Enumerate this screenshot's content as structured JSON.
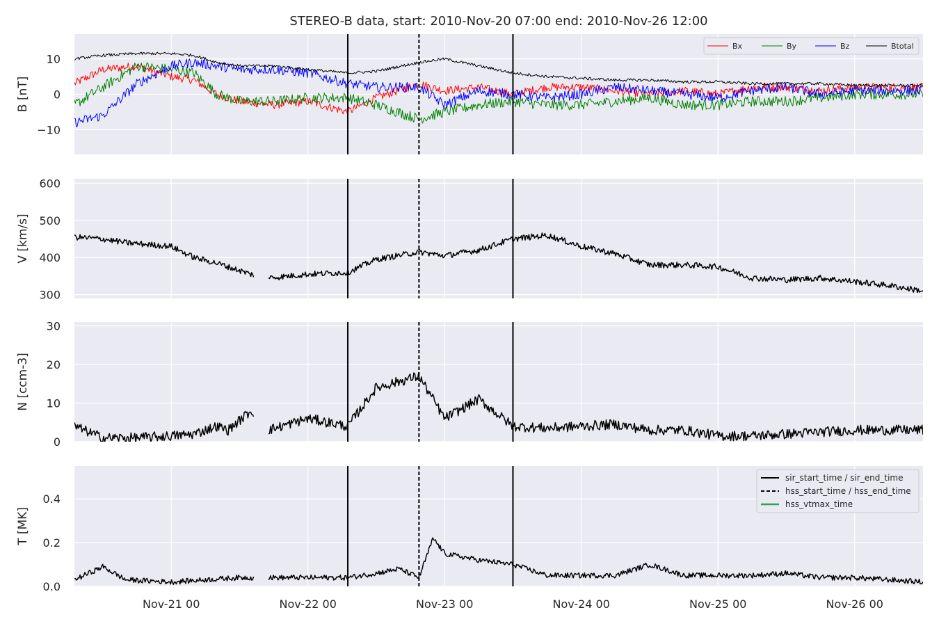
{
  "chart_data": {
    "type": "line",
    "title": "STEREO-B data, start: 2010-Nov-20 07:00  end: 2010-Nov-26 12:00",
    "x_range": [
      "2010-11-20T07:00",
      "2010-11-26T12:00"
    ],
    "x_ticks": [
      {
        "label": "Nov-21 00",
        "time": "2010-11-21T00:00"
      },
      {
        "label": "Nov-22 00",
        "time": "2010-11-22T00:00"
      },
      {
        "label": "Nov-23 00",
        "time": "2010-11-23T00:00"
      },
      {
        "label": "Nov-24 00",
        "time": "2010-11-24T00:00"
      },
      {
        "label": "Nov-25 00",
        "time": "2010-11-25T00:00"
      },
      {
        "label": "Nov-26 00",
        "time": "2010-11-26T00:00"
      }
    ],
    "event_lines": [
      {
        "time": "2010-11-22T07:00",
        "style": "solid"
      },
      {
        "time": "2010-11-22T19:30",
        "style": "dashed"
      },
      {
        "time": "2010-11-23T12:00",
        "style": "solid"
      }
    ],
    "grid": true,
    "panels": [
      {
        "ylabel": "B [nT]",
        "ylim": [
          -17,
          17
        ],
        "yticks": [
          {
            "v": 10,
            "label": "10"
          },
          {
            "v": 0,
            "label": "0"
          },
          {
            "v": -10,
            "label": "−10"
          }
        ],
        "legend_position": "top-right",
        "series": [
          {
            "name": "Bx",
            "color": "#ff0000",
            "width": 1,
            "x": [
              "2010-11-20T07:00",
              "2010-11-20T12:00",
              "2010-11-20T18:00",
              "2010-11-21T00:00",
              "2010-11-21T04:00",
              "2010-11-21T08:00",
              "2010-11-21T12:00",
              "2010-11-21T18:00",
              "2010-11-22T00:00",
              "2010-11-22T07:00",
              "2010-11-22T12:00",
              "2010-11-22T19:30",
              "2010-11-23T00:00",
              "2010-11-23T06:00",
              "2010-11-23T12:00",
              "2010-11-23T18:00",
              "2010-11-24T00:00",
              "2010-11-24T06:00",
              "2010-11-24T12:00",
              "2010-11-24T18:00",
              "2010-11-25T00:00",
              "2010-11-25T06:00",
              "2010-11-25T12:00",
              "2010-11-25T18:00",
              "2010-11-26T00:00",
              "2010-11-26T06:00",
              "2010-11-26T12:00"
            ],
            "y": [
              3,
              7,
              8,
              5,
              4,
              0,
              -2,
              -3,
              -2,
              -5,
              -1,
              3,
              1,
              2,
              0,
              2,
              2,
              1,
              0,
              1,
              0,
              2,
              2,
              1,
              2,
              2,
              2
            ],
            "noise": 1.2
          },
          {
            "name": "By",
            "color": "#008000",
            "width": 1,
            "x": [
              "2010-11-20T07:00",
              "2010-11-20T12:00",
              "2010-11-20T18:00",
              "2010-11-21T00:00",
              "2010-11-21T04:00",
              "2010-11-21T08:00",
              "2010-11-21T12:00",
              "2010-11-21T18:00",
              "2010-11-22T00:00",
              "2010-11-22T07:00",
              "2010-11-22T12:00",
              "2010-11-22T19:30",
              "2010-11-23T00:00",
              "2010-11-23T06:00",
              "2010-11-23T12:00",
              "2010-11-23T18:00",
              "2010-11-24T00:00",
              "2010-11-24T06:00",
              "2010-11-24T12:00",
              "2010-11-24T18:00",
              "2010-11-25T00:00",
              "2010-11-25T06:00",
              "2010-11-25T12:00",
              "2010-11-25T18:00",
              "2010-11-26T00:00",
              "2010-11-26T06:00",
              "2010-11-26T12:00"
            ],
            "y": [
              -3,
              2,
              8,
              7,
              6,
              0,
              -2,
              -2,
              -1,
              -1,
              -3,
              -7,
              -5,
              -3,
              -2,
              -3,
              -3,
              -2,
              -1,
              -3,
              -3,
              -2,
              -2,
              -1,
              0,
              0,
              0
            ],
            "noise": 1.5
          },
          {
            "name": "Bz",
            "color": "#0000ff",
            "width": 1,
            "x": [
              "2010-11-20T07:00",
              "2010-11-20T12:00",
              "2010-11-20T18:00",
              "2010-11-21T00:00",
              "2010-11-21T04:00",
              "2010-11-21T08:00",
              "2010-11-21T12:00",
              "2010-11-21T18:00",
              "2010-11-22T00:00",
              "2010-11-22T07:00",
              "2010-11-22T12:00",
              "2010-11-22T19:30",
              "2010-11-23T00:00",
              "2010-11-23T06:00",
              "2010-11-23T12:00",
              "2010-11-23T18:00",
              "2010-11-24T00:00",
              "2010-11-24T06:00",
              "2010-11-24T12:00",
              "2010-11-24T18:00",
              "2010-11-25T00:00",
              "2010-11-25T06:00",
              "2010-11-25T12:00",
              "2010-11-25T18:00",
              "2010-11-26T00:00",
              "2010-11-26T06:00",
              "2010-11-26T12:00"
            ],
            "y": [
              -8,
              -6,
              3,
              8,
              9,
              8,
              7,
              7,
              6,
              3,
              2,
              2,
              -3,
              1,
              0,
              -1,
              0,
              2,
              1,
              0,
              -1,
              1,
              2,
              0,
              1,
              1,
              1
            ],
            "noise": 1.4
          },
          {
            "name": "Btotal",
            "color": "#000000",
            "width": 1,
            "x": [
              "2010-11-20T07:00",
              "2010-11-20T12:00",
              "2010-11-20T18:00",
              "2010-11-21T00:00",
              "2010-11-21T04:00",
              "2010-11-21T08:00",
              "2010-11-21T12:00",
              "2010-11-21T18:00",
              "2010-11-22T00:00",
              "2010-11-22T07:00",
              "2010-11-22T12:00",
              "2010-11-22T19:30",
              "2010-11-23T00:00",
              "2010-11-23T06:00",
              "2010-11-23T12:00",
              "2010-11-23T18:00",
              "2010-11-24T00:00",
              "2010-11-24T06:00",
              "2010-11-24T12:00",
              "2010-11-24T18:00",
              "2010-11-25T00:00",
              "2010-11-25T06:00",
              "2010-11-25T12:00",
              "2010-11-25T18:00",
              "2010-11-26T00:00",
              "2010-11-26T06:00",
              "2010-11-26T12:00"
            ],
            "y": [
              10,
              11,
              11.5,
              11.5,
              11,
              9,
              8,
              8,
              7,
              6,
              6.5,
              9,
              10,
              8,
              6,
              5,
              4.5,
              4,
              4,
              3.5,
              3.5,
              3,
              3,
              3,
              2.5,
              2.5,
              2.5
            ],
            "noise": 0.4
          }
        ]
      },
      {
        "ylabel": "V [km/s]",
        "ylim": [
          290,
          612
        ],
        "yticks": [
          {
            "v": 600,
            "label": "600"
          },
          {
            "v": 500,
            "label": "500"
          },
          {
            "v": 400,
            "label": "400"
          },
          {
            "v": 300,
            "label": "300"
          }
        ],
        "series": [
          {
            "name": "",
            "color": "#000000",
            "width": 1.5,
            "gap": [
              "2010-11-21T14:30",
              "2010-11-21T17:00"
            ],
            "x": [
              "2010-11-20T07:00",
              "2010-11-20T12:00",
              "2010-11-20T16:00",
              "2010-11-21T00:00",
              "2010-11-21T04:00",
              "2010-11-21T08:00",
              "2010-11-21T14:00",
              "2010-11-21T17:00",
              "2010-11-22T00:00",
              "2010-11-22T07:00",
              "2010-11-22T12:00",
              "2010-11-22T19:30",
              "2010-11-23T00:00",
              "2010-11-23T06:00",
              "2010-11-23T12:00",
              "2010-11-23T18:00",
              "2010-11-24T00:00",
              "2010-11-24T06:00",
              "2010-11-24T12:00",
              "2010-11-24T18:00",
              "2010-11-25T00:00",
              "2010-11-25T06:00",
              "2010-11-25T12:00",
              "2010-11-25T18:00",
              "2010-11-26T00:00",
              "2010-11-26T06:00",
              "2010-11-26T12:00"
            ],
            "y": [
              455,
              450,
              440,
              430,
              400,
              385,
              355,
              345,
              355,
              360,
              395,
              415,
              405,
              420,
              450,
              460,
              430,
              410,
              380,
              380,
              375,
              345,
              340,
              345,
              335,
              325,
              310
            ],
            "noise": 8
          }
        ]
      },
      {
        "ylabel": "N [ccm-3]",
        "ylim": [
          0,
          31
        ],
        "yticks": [
          {
            "v": 30,
            "label": "30"
          },
          {
            "v": 20,
            "label": "20"
          },
          {
            "v": 10,
            "label": "10"
          },
          {
            "v": 0,
            "label": "0"
          }
        ],
        "series": [
          {
            "name": "",
            "color": "#000000",
            "width": 1.5,
            "gap": [
              "2010-11-21T14:30",
              "2010-11-21T17:00"
            ],
            "x": [
              "2010-11-20T07:00",
              "2010-11-20T12:00",
              "2010-11-20T18:00",
              "2010-11-21T00:00",
              "2010-11-21T04:00",
              "2010-11-21T08:00",
              "2010-11-21T10:00",
              "2010-11-21T14:00",
              "2010-11-21T17:00",
              "2010-11-22T00:00",
              "2010-11-22T07:00",
              "2010-11-22T12:00",
              "2010-11-22T19:30",
              "2010-11-23T00:00",
              "2010-11-23T06:00",
              "2010-11-23T12:00",
              "2010-11-23T18:00",
              "2010-11-24T00:00",
              "2010-11-24T06:00",
              "2010-11-24T12:00",
              "2010-11-24T18:00",
              "2010-11-25T00:00",
              "2010-11-25T06:00",
              "2010-11-25T12:00",
              "2010-11-25T18:00",
              "2010-11-26T00:00",
              "2010-11-26T06:00",
              "2010-11-26T12:00"
            ],
            "y": [
              4,
              1,
              1,
              1.5,
              2,
              4,
              3,
              8,
              3,
              6,
              4,
              14,
              17,
              6,
              11,
              4,
              3.5,
              4,
              4.5,
              3,
              3,
              1.5,
              1.5,
              2,
              2.5,
              3,
              3,
              3
            ],
            "noise": 1.3
          }
        ]
      },
      {
        "ylabel": "T [MK]",
        "ylim": [
          0,
          0.55
        ],
        "yticks": [
          {
            "v": 0.4,
            "label": "0.4"
          },
          {
            "v": 0.2,
            "label": "0.2"
          },
          {
            "v": 0.0,
            "label": "0.0"
          }
        ],
        "legend_position": "top-right",
        "series": [
          {
            "name": "",
            "color": "#000000",
            "width": 1.5,
            "gap": [
              "2010-11-21T14:30",
              "2010-11-21T17:00"
            ],
            "x": [
              "2010-11-20T07:00",
              "2010-11-20T12:00",
              "2010-11-20T16:00",
              "2010-11-21T00:00",
              "2010-11-21T06:00",
              "2010-11-21T12:00",
              "2010-11-21T17:00",
              "2010-11-22T00:00",
              "2010-11-22T07:00",
              "2010-11-22T12:00",
              "2010-11-22T16:00",
              "2010-11-22T19:30",
              "2010-11-22T22:00",
              "2010-11-23T00:00",
              "2010-11-23T06:00",
              "2010-11-23T12:00",
              "2010-11-23T18:00",
              "2010-11-24T00:00",
              "2010-11-24T06:00",
              "2010-11-24T12:00",
              "2010-11-24T18:00",
              "2010-11-25T00:00",
              "2010-11-25T06:00",
              "2010-11-25T12:00",
              "2010-11-25T18:00",
              "2010-11-26T00:00",
              "2010-11-26T06:00",
              "2010-11-26T12:00"
            ],
            "y": [
              0.03,
              0.09,
              0.03,
              0.02,
              0.03,
              0.04,
              0.04,
              0.04,
              0.04,
              0.06,
              0.08,
              0.04,
              0.22,
              0.15,
              0.12,
              0.1,
              0.05,
              0.05,
              0.05,
              0.1,
              0.05,
              0.05,
              0.05,
              0.06,
              0.04,
              0.04,
              0.03,
              0.02
            ],
            "noise": 0.012
          }
        ],
        "legend_entries": [
          {
            "label": "sir_start_time / sir_end_time",
            "color": "#000000",
            "style": "solid"
          },
          {
            "label": "hss_start_time / hss_end_time",
            "color": "#000000",
            "style": "dashed"
          },
          {
            "label": "hss_vtmax_time",
            "color": "#2ca25f",
            "style": "solid"
          }
        ]
      }
    ]
  }
}
